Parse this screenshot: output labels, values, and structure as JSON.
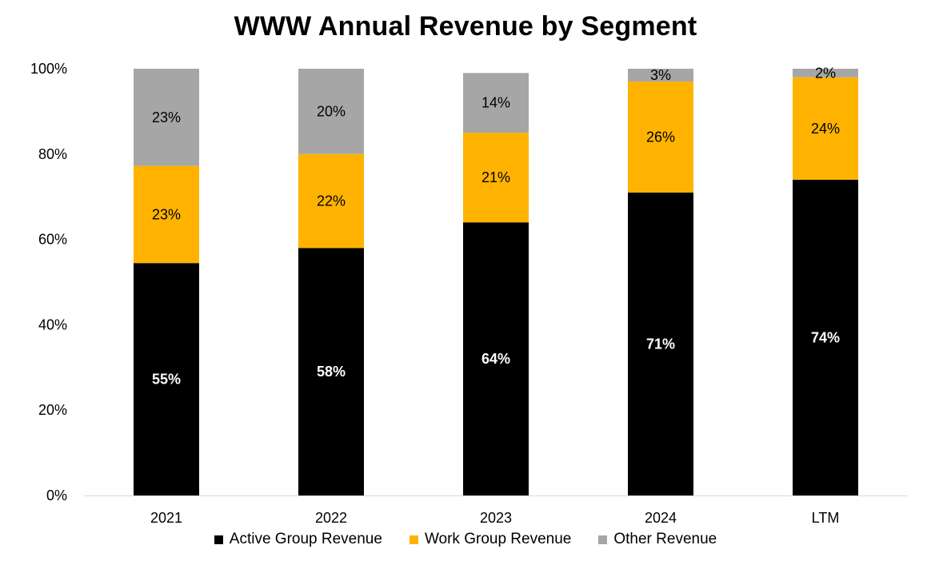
{
  "chart_data": {
    "type": "bar",
    "stacked": true,
    "title": "WWW Annual Revenue by Segment",
    "categories": [
      "2021",
      "2022",
      "2023",
      "2024",
      "LTM"
    ],
    "series": [
      {
        "name": "Active Group Revenue",
        "color": "#000000",
        "label_color": "#ffffff",
        "values": [
          55,
          58,
          64,
          71,
          74
        ],
        "labels": [
          "55%",
          "58%",
          "64%",
          "71%",
          "74%"
        ]
      },
      {
        "name": "Work Group Revenue",
        "color": "#FFB300",
        "label_color": "#000000",
        "values": [
          23,
          22,
          21,
          26,
          24
        ],
        "labels": [
          "23%",
          "22%",
          "21%",
          "26%",
          "24%"
        ]
      },
      {
        "name": "Other Revenue",
        "color": "#A6A6A6",
        "label_color": "#000000",
        "values": [
          23,
          20,
          14,
          3,
          2
        ],
        "labels": [
          "23%",
          "20%",
          "14%",
          "3%",
          "2%"
        ]
      }
    ],
    "y_ticks": [
      "0%",
      "20%",
      "40%",
      "60%",
      "80%",
      "100%"
    ],
    "ylim": [
      0,
      100
    ],
    "grid": false,
    "legend_position": "bottom"
  }
}
